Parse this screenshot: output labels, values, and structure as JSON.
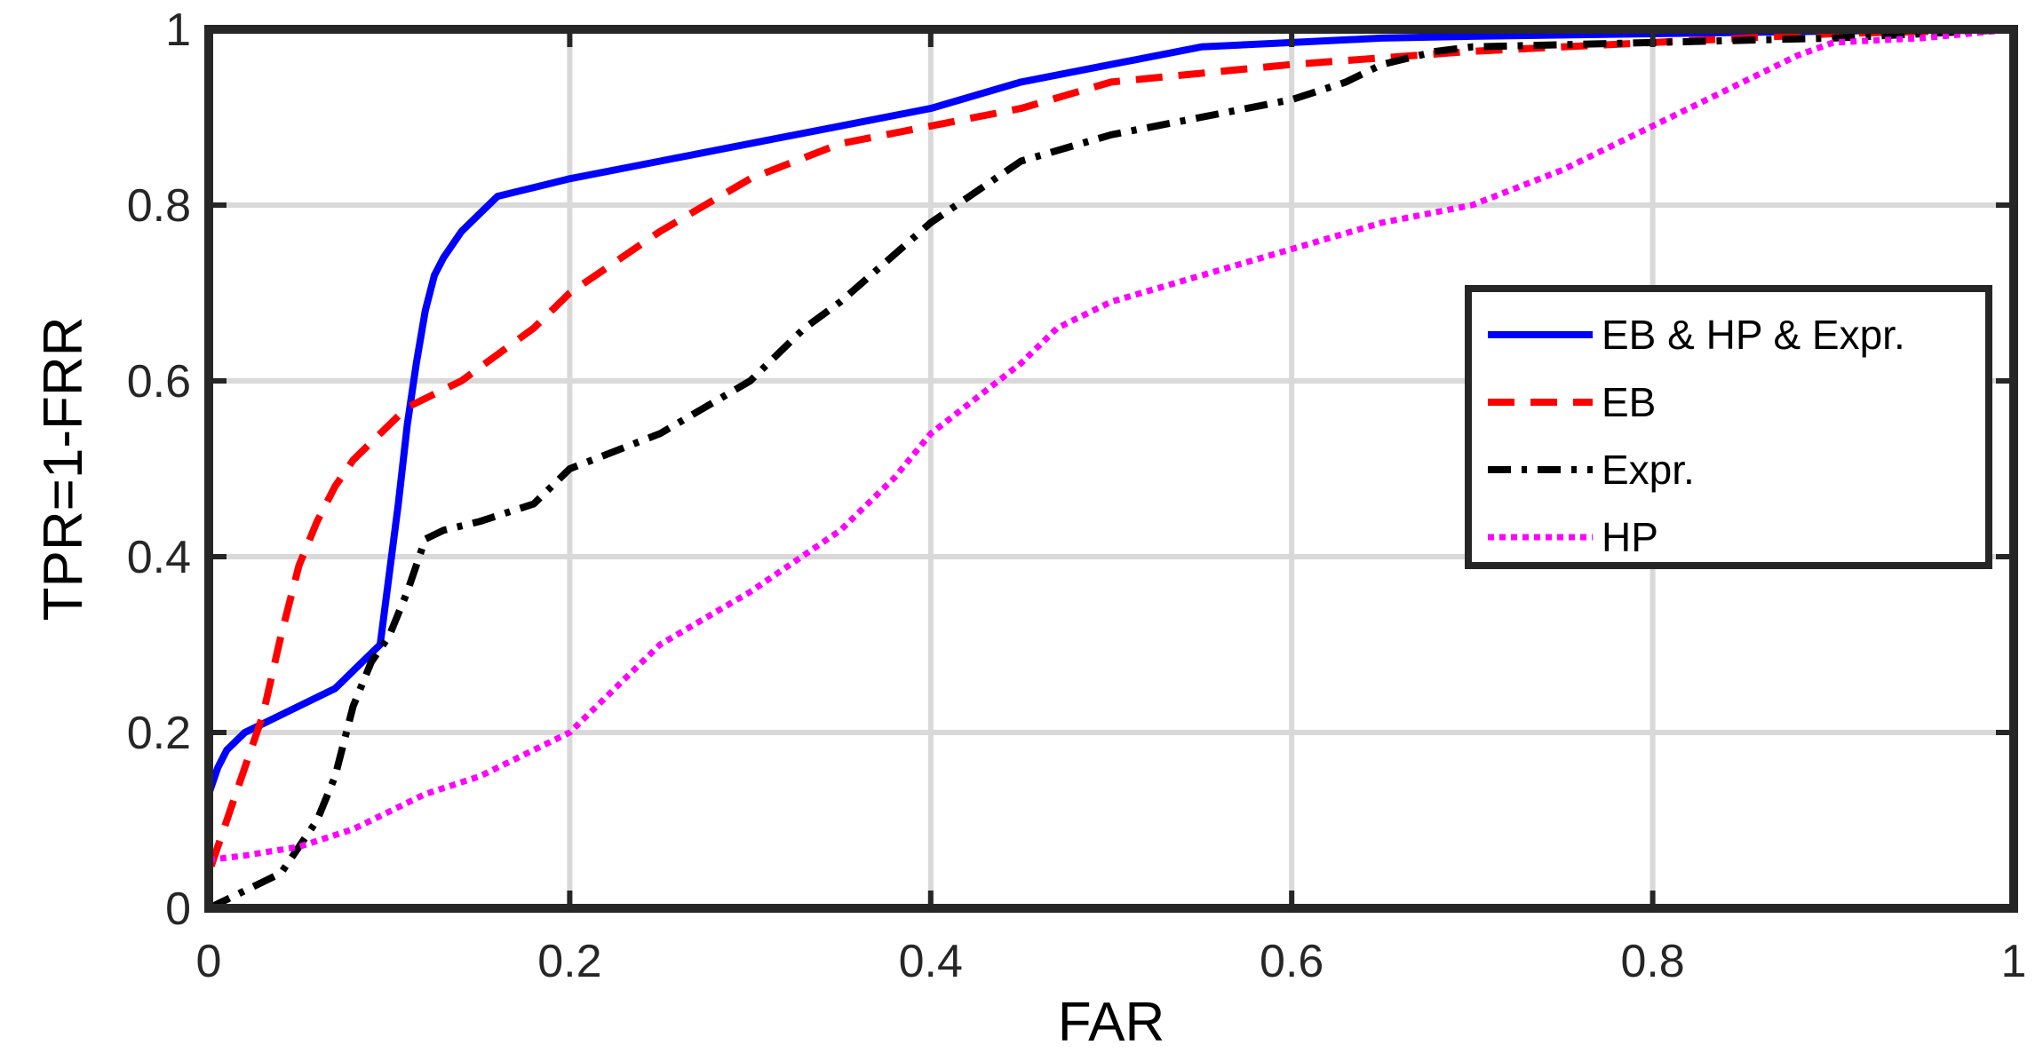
{
  "chart_data": {
    "type": "line",
    "title": "",
    "xlabel": "FAR",
    "ylabel": "TPR=1-FRR",
    "xlim": [
      0,
      1
    ],
    "ylim": [
      0,
      1
    ],
    "xticks": [
      "0",
      "0.2",
      "0.4",
      "0.6",
      "0.8",
      "1"
    ],
    "yticks": [
      "0",
      "0.2",
      "0.4",
      "0.6",
      "0.8",
      "1"
    ],
    "grid": true,
    "legend_position": "right",
    "series": [
      {
        "name": "EB & HP & Expr.",
        "color": "#0000ff",
        "style": "solid",
        "x": [
          0,
          0,
          0.005,
          0.01,
          0.02,
          0.03,
          0.05,
          0.07,
          0.085,
          0.095,
          0.1,
          0.105,
          0.11,
          0.115,
          0.12,
          0.125,
          0.13,
          0.14,
          0.15,
          0.16,
          0.18,
          0.2,
          0.25,
          0.3,
          0.35,
          0.4,
          0.45,
          0.5,
          0.55,
          0.6,
          0.65,
          0.7,
          0.8,
          0.9,
          1.0
        ],
        "y": [
          0,
          0.13,
          0.16,
          0.18,
          0.2,
          0.21,
          0.23,
          0.25,
          0.28,
          0.3,
          0.38,
          0.46,
          0.55,
          0.62,
          0.68,
          0.72,
          0.74,
          0.77,
          0.79,
          0.81,
          0.82,
          0.83,
          0.85,
          0.87,
          0.89,
          0.91,
          0.94,
          0.96,
          0.98,
          0.985,
          0.99,
          0.992,
          0.995,
          0.998,
          1.0
        ]
      },
      {
        "name": "EB",
        "color": "#ff0000",
        "style": "dashed",
        "x": [
          0,
          0,
          0.01,
          0.02,
          0.03,
          0.04,
          0.05,
          0.06,
          0.07,
          0.08,
          0.09,
          0.1,
          0.11,
          0.12,
          0.14,
          0.16,
          0.18,
          0.2,
          0.25,
          0.3,
          0.35,
          0.4,
          0.45,
          0.5,
          0.6,
          0.7,
          0.8,
          0.9,
          1.0
        ],
        "y": [
          0,
          0.04,
          0.1,
          0.16,
          0.22,
          0.31,
          0.39,
          0.44,
          0.48,
          0.51,
          0.53,
          0.55,
          0.57,
          0.58,
          0.6,
          0.63,
          0.66,
          0.7,
          0.77,
          0.83,
          0.87,
          0.89,
          0.91,
          0.94,
          0.96,
          0.975,
          0.985,
          0.995,
          1.0
        ]
      },
      {
        "name": "Expr.",
        "color": "#000000",
        "style": "dashdot",
        "x": [
          0,
          0.005,
          0.01,
          0.02,
          0.03,
          0.04,
          0.05,
          0.06,
          0.07,
          0.08,
          0.09,
          0.1,
          0.11,
          0.12,
          0.13,
          0.15,
          0.18,
          0.2,
          0.25,
          0.3,
          0.33,
          0.35,
          0.4,
          0.45,
          0.5,
          0.55,
          0.6,
          0.63,
          0.65,
          0.68,
          0.7,
          0.8,
          0.9,
          1.0
        ],
        "y": [
          0,
          0.005,
          0.01,
          0.02,
          0.03,
          0.04,
          0.07,
          0.1,
          0.15,
          0.23,
          0.28,
          0.31,
          0.36,
          0.42,
          0.43,
          0.44,
          0.46,
          0.5,
          0.54,
          0.6,
          0.66,
          0.69,
          0.78,
          0.85,
          0.88,
          0.9,
          0.92,
          0.94,
          0.96,
          0.975,
          0.98,
          0.985,
          0.99,
          1.0
        ]
      },
      {
        "name": "HP",
        "color": "#ff00ff",
        "style": "dotted",
        "x": [
          0,
          0.02,
          0.05,
          0.08,
          0.1,
          0.12,
          0.15,
          0.2,
          0.22,
          0.25,
          0.3,
          0.35,
          0.38,
          0.4,
          0.45,
          0.47,
          0.5,
          0.55,
          0.6,
          0.65,
          0.7,
          0.75,
          0.8,
          0.85,
          0.88,
          0.9,
          0.95,
          1.0
        ],
        "y": [
          0.055,
          0.06,
          0.07,
          0.09,
          0.11,
          0.13,
          0.15,
          0.2,
          0.24,
          0.3,
          0.36,
          0.43,
          0.49,
          0.54,
          0.62,
          0.66,
          0.69,
          0.72,
          0.75,
          0.78,
          0.8,
          0.84,
          0.89,
          0.94,
          0.97,
          0.985,
          0.99,
          1.0
        ]
      }
    ]
  }
}
